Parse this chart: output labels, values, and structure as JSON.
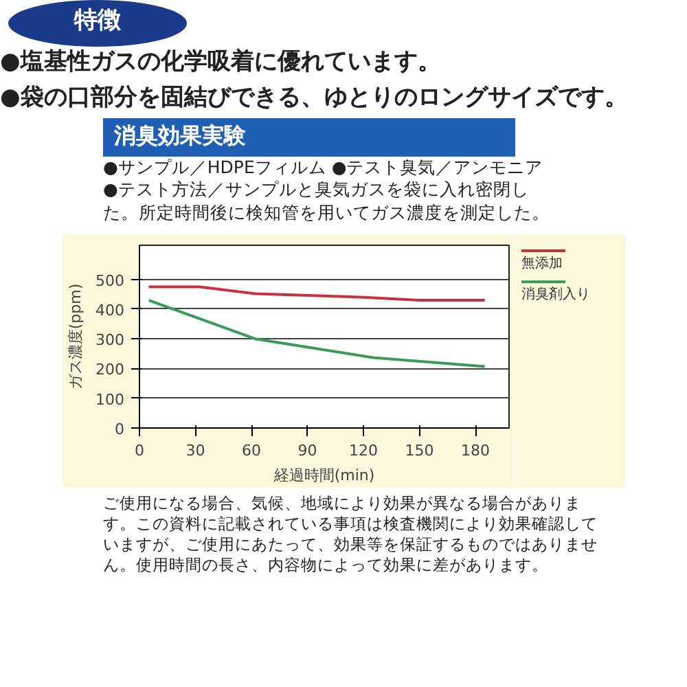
{
  "chart_data": {
    "type": "line",
    "title": "消臭効果実験",
    "subtitle": "●サンプル／HDPEフィルム ●テスト臭気／アンモニア\n●テスト方法／サンプルと臭気ガスを袋に入れ密閉した。所定時間後に検知管を用いてガス濃度を測定した。",
    "annotations": [
      "特徴",
      "●塩基性ガスの化学吸着に優れています。",
      "●袋の口部分を固結びできる、ゆとりのロングサイズです。",
      "ご使用になる場合、気候、地域により効果が異なる場合があります。この資料に記載されている事項は検査機関により効果確認していますが、ご使用にあたって、効果等を保証するものではありません。使用時間の長さ、内容物によって効果に差があります。"
    ],
    "xlabel": "経過時間(min)",
    "ylabel": "ガス濃度(ppm)",
    "series": [
      {
        "name": "無添加",
        "color": "#c8323c",
        "x": [
          5,
          32,
          62,
          120,
          150,
          185
        ],
        "values": [
          475,
          475,
          452,
          440,
          430,
          430
        ]
      },
      {
        "name": "消臭剤入り",
        "color": "#3a9a5a",
        "x": [
          5,
          62,
          125,
          185
        ],
        "values": [
          430,
          300,
          237,
          207
        ]
      }
    ],
    "xlim": [
      0,
      198
    ],
    "ylim": [
      0,
      615
    ],
    "xticks": [
      0,
      30,
      60,
      90,
      120,
      150,
      180
    ],
    "yticks": [
      0,
      100,
      200,
      300,
      400,
      500
    ],
    "grid": "y",
    "legend": "right",
    "marker": "none",
    "line_style": "solid"
  }
}
